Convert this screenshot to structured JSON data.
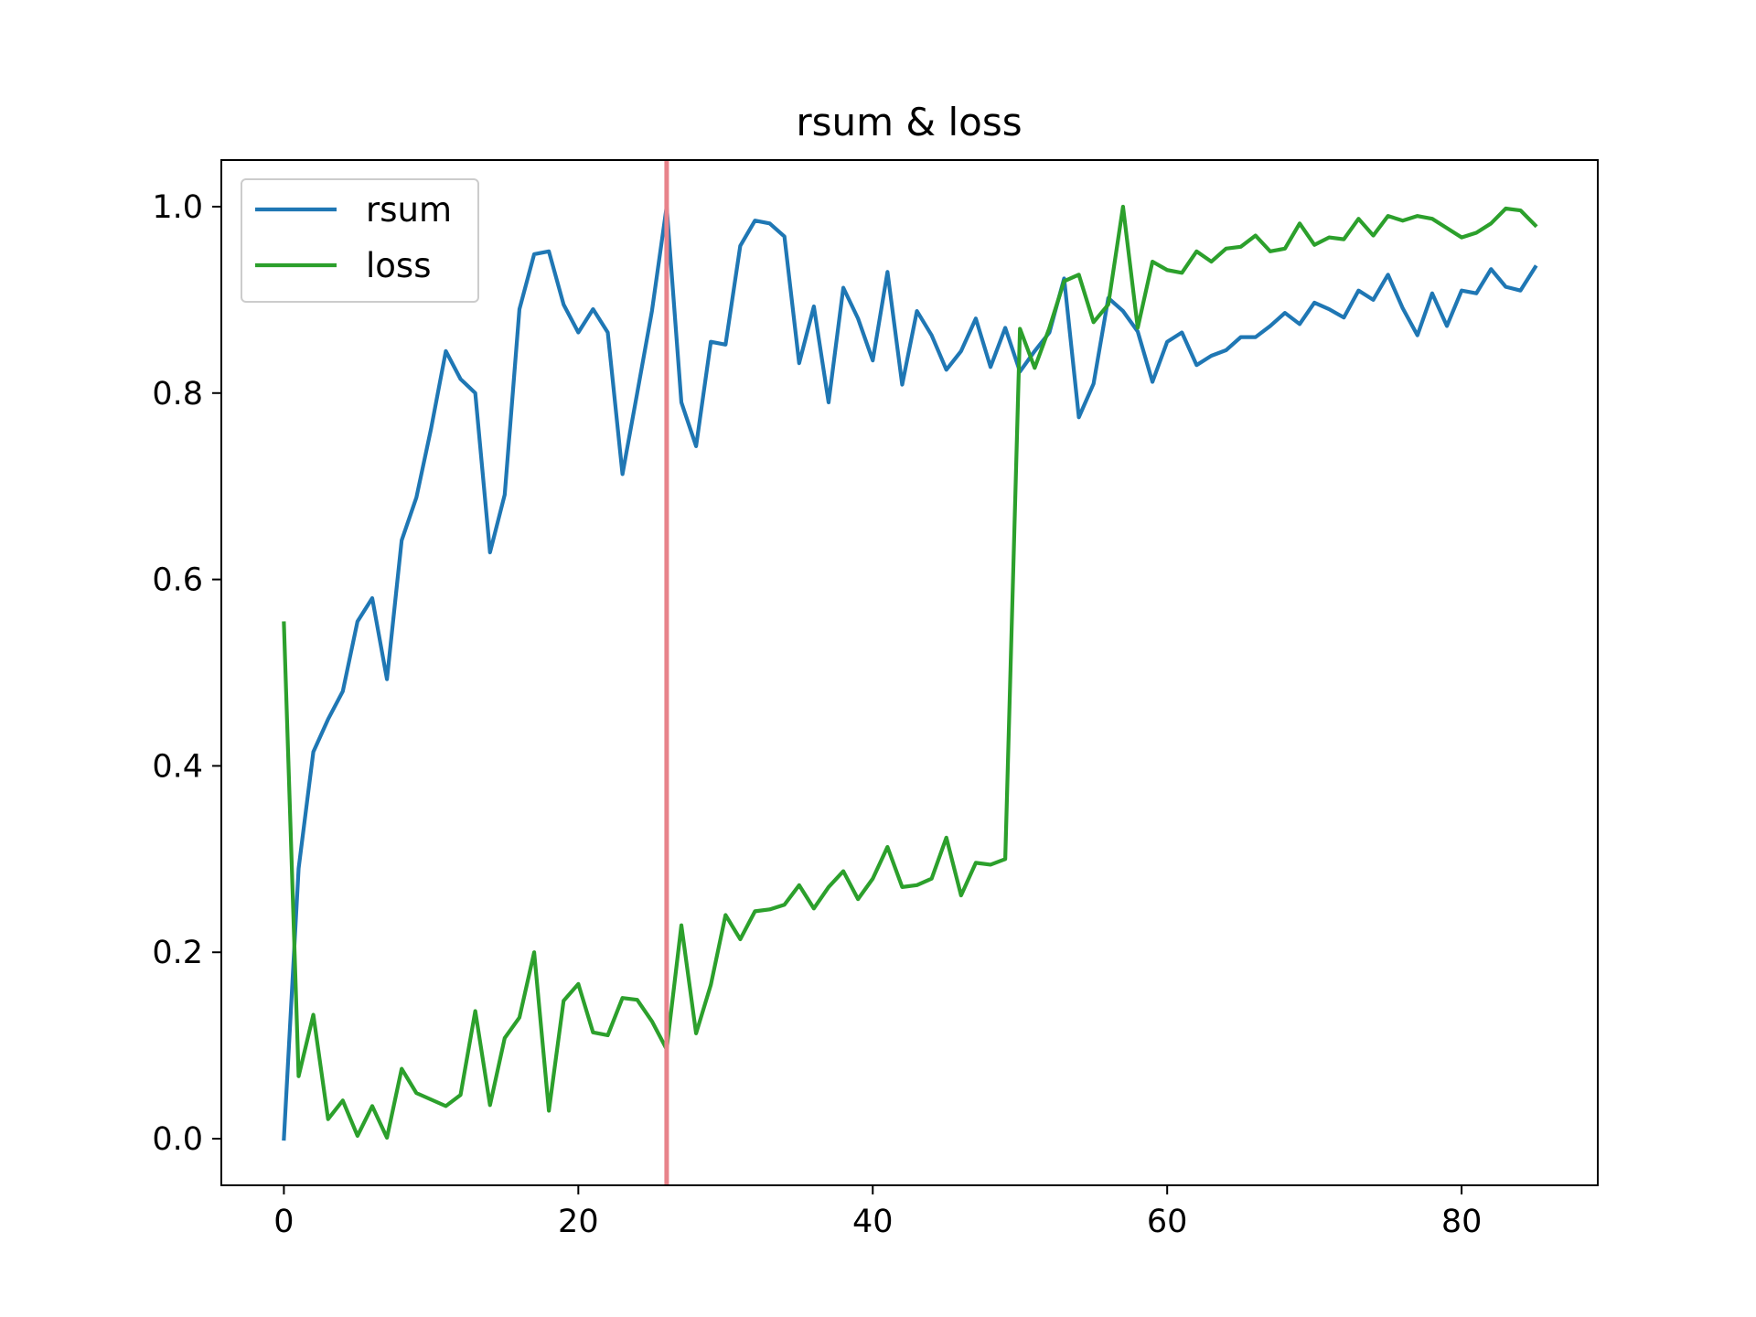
{
  "chart_data": {
    "type": "line",
    "title": "rsum & loss",
    "xlabel": "",
    "ylabel": "",
    "xlim": [
      -4.25,
      89.25
    ],
    "ylim": [
      -0.05,
      1.05
    ],
    "xticks": [
      0,
      20,
      40,
      60,
      80
    ],
    "yticks": [
      0.0,
      0.2,
      0.4,
      0.6,
      0.8,
      1.0
    ],
    "xtick_labels": [
      "0",
      "20",
      "40",
      "60",
      "80"
    ],
    "ytick_labels": [
      "0.0",
      "0.2",
      "0.4",
      "0.6",
      "0.8",
      "1.0"
    ],
    "grid": false,
    "legend": "upper left",
    "vline": {
      "x": 26,
      "color": "#e8838b"
    },
    "x": [
      0,
      1,
      2,
      3,
      4,
      5,
      6,
      7,
      8,
      9,
      10,
      11,
      12,
      13,
      14,
      15,
      16,
      17,
      18,
      19,
      20,
      21,
      22,
      23,
      24,
      25,
      26,
      27,
      28,
      29,
      30,
      31,
      32,
      33,
      34,
      35,
      36,
      37,
      38,
      39,
      40,
      41,
      42,
      43,
      44,
      45,
      46,
      47,
      48,
      49,
      50,
      51,
      52,
      53,
      54,
      55,
      56,
      57,
      58,
      59,
      60,
      61,
      62,
      63,
      64,
      65,
      66,
      67,
      68,
      69,
      70,
      71,
      72,
      73,
      74,
      75,
      76,
      77,
      78,
      79,
      80,
      81,
      82,
      83,
      84,
      85
    ],
    "series": [
      {
        "name": "rsum",
        "color": "#1f77b4",
        "values": [
          0.0,
          0.29,
          0.415,
          0.45,
          0.48,
          0.555,
          0.58,
          0.493,
          0.642,
          0.688,
          0.762,
          0.845,
          0.815,
          0.8,
          0.629,
          0.691,
          0.89,
          0.949,
          0.952,
          0.895,
          0.865,
          0.89,
          0.865,
          0.713,
          0.8,
          0.888,
          1.0,
          0.79,
          0.743,
          0.855,
          0.852,
          0.958,
          0.985,
          0.982,
          0.968,
          0.832,
          0.893,
          0.79,
          0.913,
          0.88,
          0.835,
          0.93,
          0.809,
          0.888,
          0.862,
          0.825,
          0.845,
          0.88,
          0.828,
          0.87,
          0.823,
          0.845,
          0.865,
          0.923,
          0.774,
          0.81,
          0.902,
          0.888,
          0.866,
          0.812,
          0.855,
          0.865,
          0.83,
          0.84,
          0.846,
          0.86,
          0.86,
          0.872,
          0.886,
          0.874,
          0.897,
          0.89,
          0.881,
          0.91,
          0.9,
          0.927,
          0.891,
          0.862,
          0.907,
          0.872,
          0.91,
          0.907,
          0.933,
          0.914,
          0.91,
          0.935
        ]
      },
      {
        "name": "loss",
        "color": "#2ca02c",
        "values": [
          0.553,
          0.067,
          0.133,
          0.021,
          0.041,
          0.003,
          0.035,
          0.001,
          0.075,
          0.049,
          0.042,
          0.035,
          0.047,
          0.137,
          0.036,
          0.108,
          0.13,
          0.2,
          0.03,
          0.148,
          0.166,
          0.114,
          0.111,
          0.151,
          0.149,
          0.126,
          0.096,
          0.229,
          0.113,
          0.165,
          0.24,
          0.214,
          0.244,
          0.246,
          0.251,
          0.272,
          0.247,
          0.27,
          0.287,
          0.257,
          0.279,
          0.313,
          0.27,
          0.272,
          0.279,
          0.323,
          0.261,
          0.296,
          0.294,
          0.3,
          0.869,
          0.827,
          0.87,
          0.92,
          0.927,
          0.876,
          0.895,
          1.0,
          0.87,
          0.941,
          0.932,
          0.929,
          0.952,
          0.941,
          0.955,
          0.957,
          0.969,
          0.952,
          0.955,
          0.982,
          0.959,
          0.967,
          0.965,
          0.987,
          0.969,
          0.99,
          0.985,
          0.99,
          0.987,
          0.977,
          0.967,
          0.972,
          0.982,
          0.998,
          0.996,
          0.98
        ]
      }
    ]
  }
}
